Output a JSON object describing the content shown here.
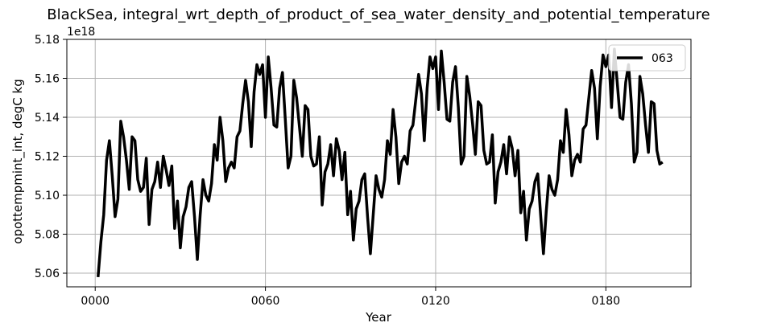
{
  "chart_data": {
    "type": "line",
    "title": "BlackSea, integral_wrt_depth_of_product_of_sea_water_density_and_potential_temperature",
    "xlabel": "Year",
    "ylabel": "opottempmint_int, degC kg",
    "y_offset_text": "1e18",
    "xlim": [
      -10,
      210
    ],
    "ylim": [
      5.053,
      5.18
    ],
    "grid": true,
    "legend_position": "top-right",
    "x_ticks": [
      0,
      60,
      120,
      180
    ],
    "x_tick_labels": [
      "0000",
      "0060",
      "0120",
      "0180"
    ],
    "y_ticks": [
      5.06,
      5.08,
      5.1,
      5.12,
      5.14,
      5.16,
      5.18
    ],
    "y_tick_labels": [
      "5.06",
      "5.08",
      "5.10",
      "5.12",
      "5.14",
      "5.16",
      "5.18"
    ],
    "series": [
      {
        "name": "063",
        "color": "#000000",
        "x_start": 1,
        "x_step": 1,
        "values": [
          5.058,
          5.076,
          5.09,
          5.118,
          5.128,
          5.11,
          5.089,
          5.098,
          5.138,
          5.13,
          5.118,
          5.103,
          5.13,
          5.128,
          5.108,
          5.102,
          5.104,
          5.119,
          5.085,
          5.103,
          5.107,
          5.117,
          5.104,
          5.12,
          5.113,
          5.105,
          5.115,
          5.083,
          5.097,
          5.073,
          5.089,
          5.094,
          5.104,
          5.107,
          5.089,
          5.067,
          5.09,
          5.108,
          5.1,
          5.097,
          5.106,
          5.126,
          5.118,
          5.14,
          5.128,
          5.107,
          5.114,
          5.117,
          5.114,
          5.13,
          5.133,
          5.147,
          5.159,
          5.148,
          5.125,
          5.153,
          5.167,
          5.162,
          5.167,
          5.14,
          5.171,
          5.155,
          5.136,
          5.135,
          5.155,
          5.163,
          5.139,
          5.114,
          5.12,
          5.159,
          5.15,
          5.135,
          5.12,
          5.146,
          5.144,
          5.12,
          5.115,
          5.116,
          5.13,
          5.095,
          5.112,
          5.116,
          5.126,
          5.11,
          5.129,
          5.123,
          5.108,
          5.122,
          5.09,
          5.102,
          5.077,
          5.093,
          5.097,
          5.108,
          5.111,
          5.089,
          5.07,
          5.09,
          5.11,
          5.103,
          5.099,
          5.108,
          5.128,
          5.121,
          5.144,
          5.13,
          5.106,
          5.117,
          5.12,
          5.116,
          5.133,
          5.136,
          5.149,
          5.162,
          5.152,
          5.128,
          5.155,
          5.171,
          5.165,
          5.171,
          5.144,
          5.174,
          5.158,
          5.139,
          5.138,
          5.158,
          5.166,
          5.145,
          5.116,
          5.12,
          5.161,
          5.151,
          5.137,
          5.121,
          5.148,
          5.146,
          5.123,
          5.116,
          5.117,
          5.131,
          5.096,
          5.112,
          5.117,
          5.126,
          5.111,
          5.13,
          5.124,
          5.11,
          5.123,
          5.091,
          5.102,
          5.077,
          5.093,
          5.097,
          5.107,
          5.111,
          5.09,
          5.07,
          5.092,
          5.11,
          5.103,
          5.1,
          5.108,
          5.128,
          5.122,
          5.144,
          5.131,
          5.11,
          5.118,
          5.121,
          5.117,
          5.134,
          5.136,
          5.15,
          5.164,
          5.155,
          5.129,
          5.156,
          5.172,
          5.166,
          5.172,
          5.145,
          5.175,
          5.158,
          5.14,
          5.139,
          5.158,
          5.167,
          5.147,
          5.117,
          5.122,
          5.161,
          5.152,
          5.136,
          5.122,
          5.148,
          5.147,
          5.123,
          5.116,
          5.117
        ]
      }
    ]
  }
}
